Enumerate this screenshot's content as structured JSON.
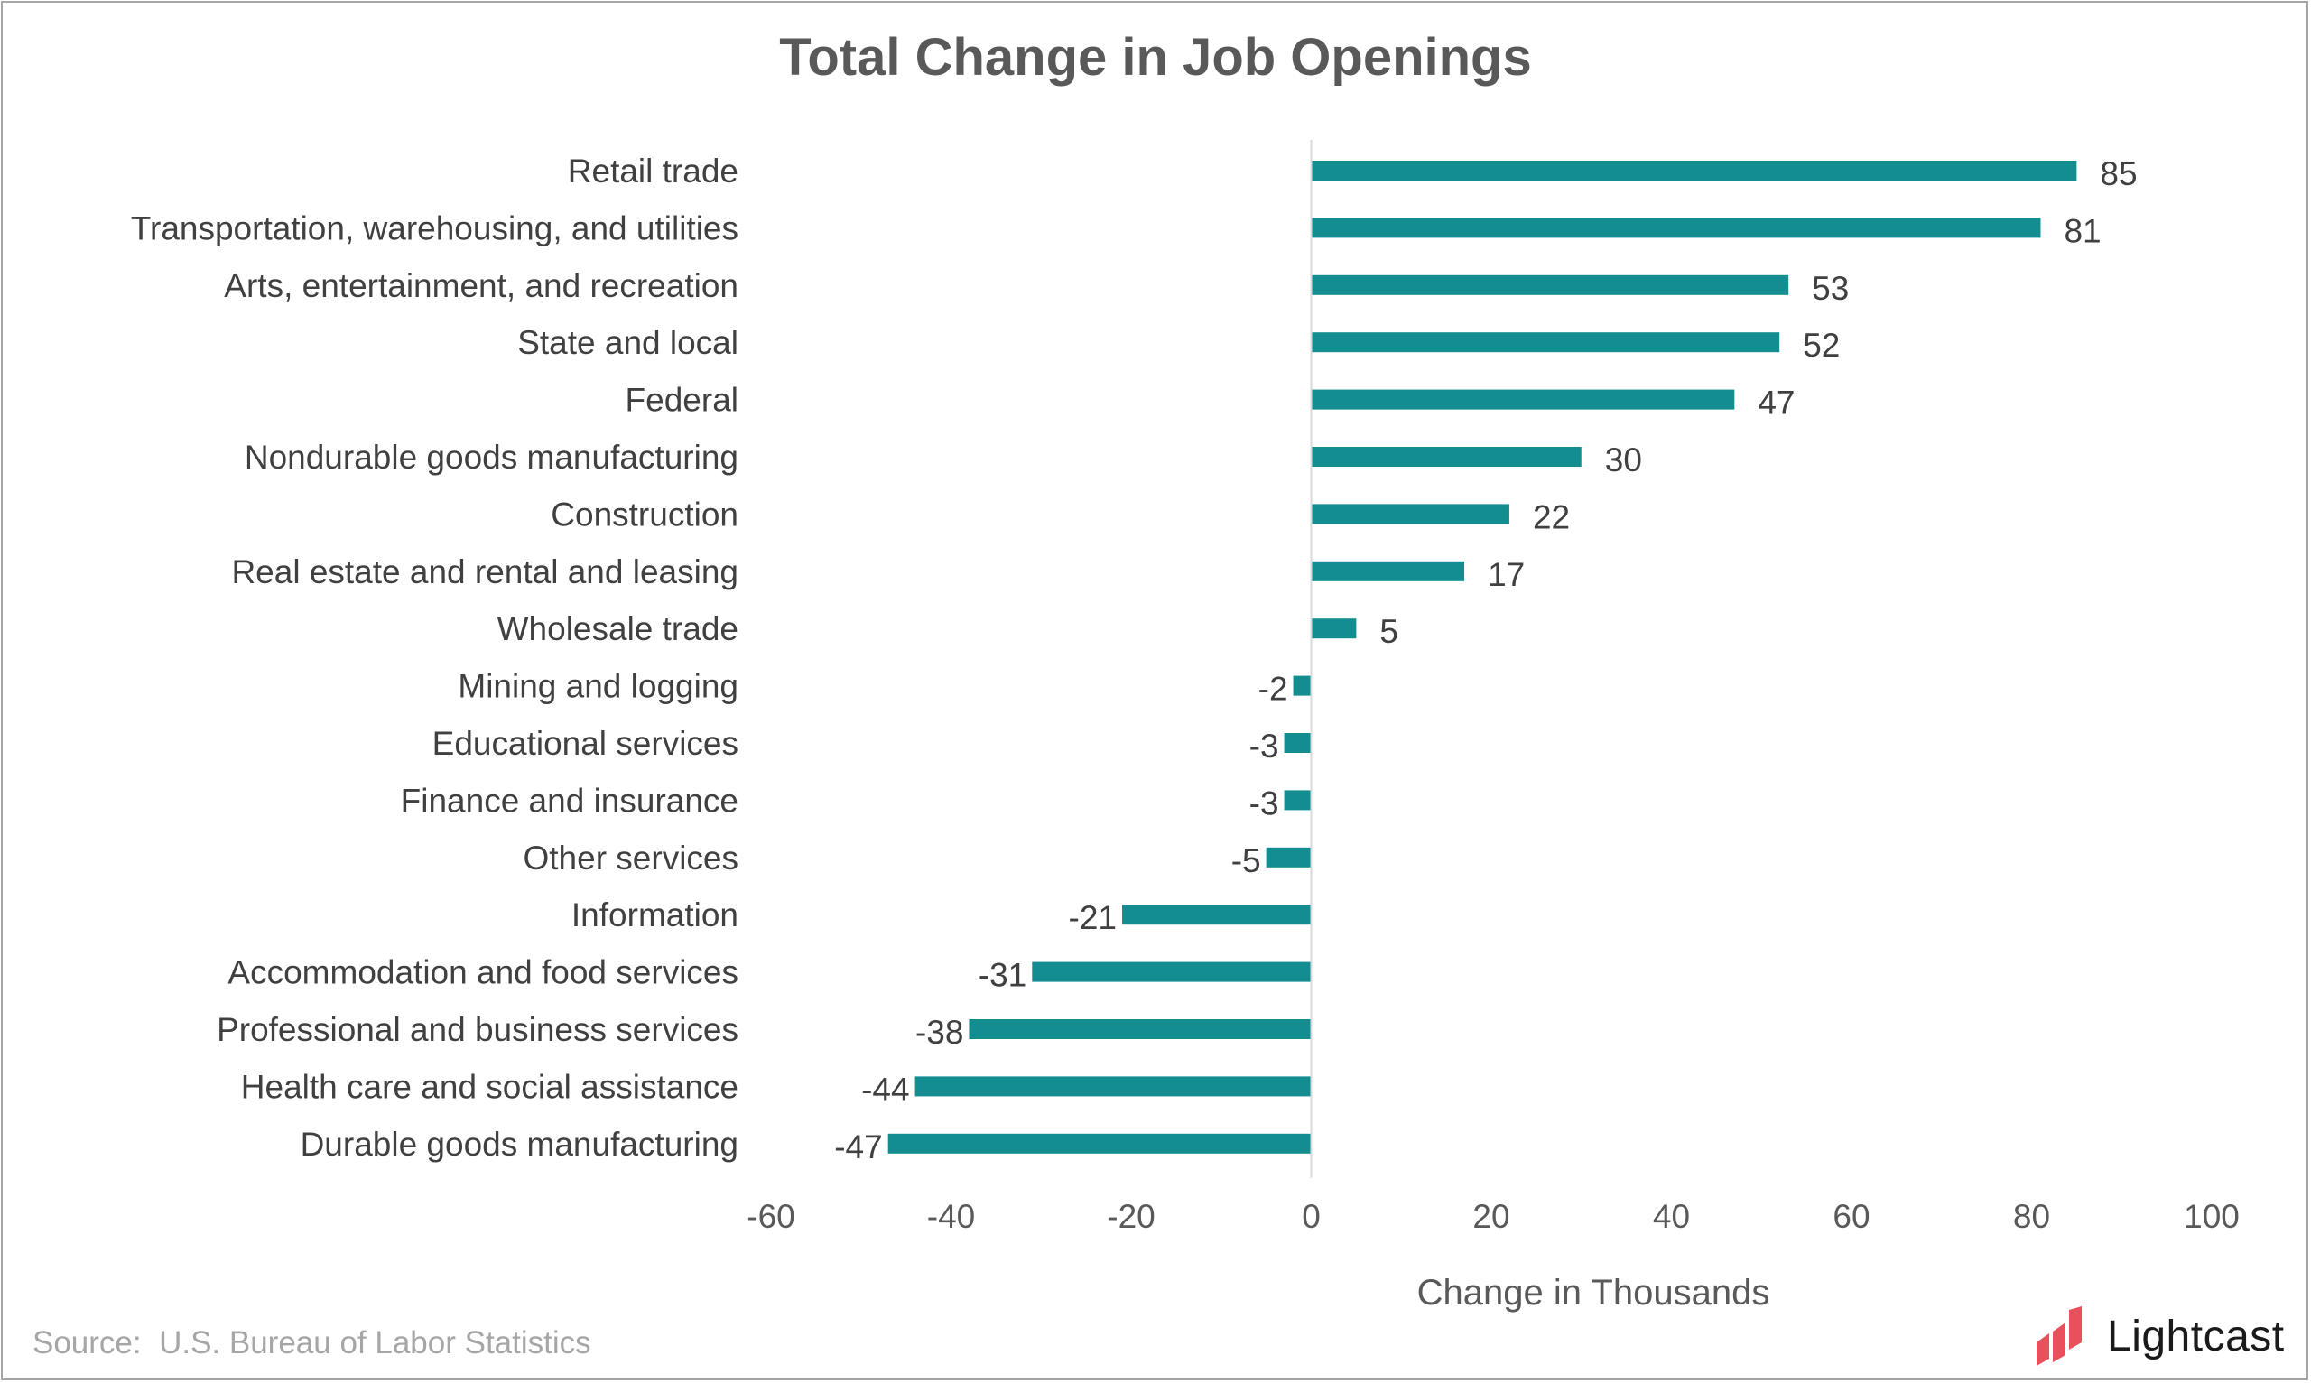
{
  "chart_data": {
    "type": "bar",
    "orientation": "horizontal",
    "title": "Total Change in Job Openings",
    "xlabel": "Change in Thousands",
    "ylabel": "",
    "xlim": [
      -60,
      100
    ],
    "xticks": [
      -60,
      -40,
      -20,
      0,
      20,
      40,
      60,
      80,
      100
    ],
    "grid": false,
    "bar_color": "#138d8f",
    "categories": [
      "Retail trade",
      "Transportation, warehousing, and utilities",
      "Arts, entertainment, and recreation",
      "State and local",
      "Federal",
      "Nondurable goods manufacturing",
      "Construction",
      "Real estate and rental and leasing",
      "Wholesale trade",
      "Mining and logging",
      "Educational services",
      "Finance and insurance",
      "Other services",
      "Information",
      "Accommodation and food services",
      "Professional and business services",
      "Health care and social assistance",
      "Durable goods manufacturing"
    ],
    "values": [
      85,
      81,
      53,
      52,
      47,
      30,
      22,
      17,
      5,
      -2,
      -3,
      -3,
      -5,
      -21,
      -31,
      -38,
      -44,
      -47
    ]
  },
  "source": "Source:  U.S. Bureau of Labor Statistics",
  "brand": {
    "name": "Lightcast",
    "logo_color": "#e8505b"
  }
}
